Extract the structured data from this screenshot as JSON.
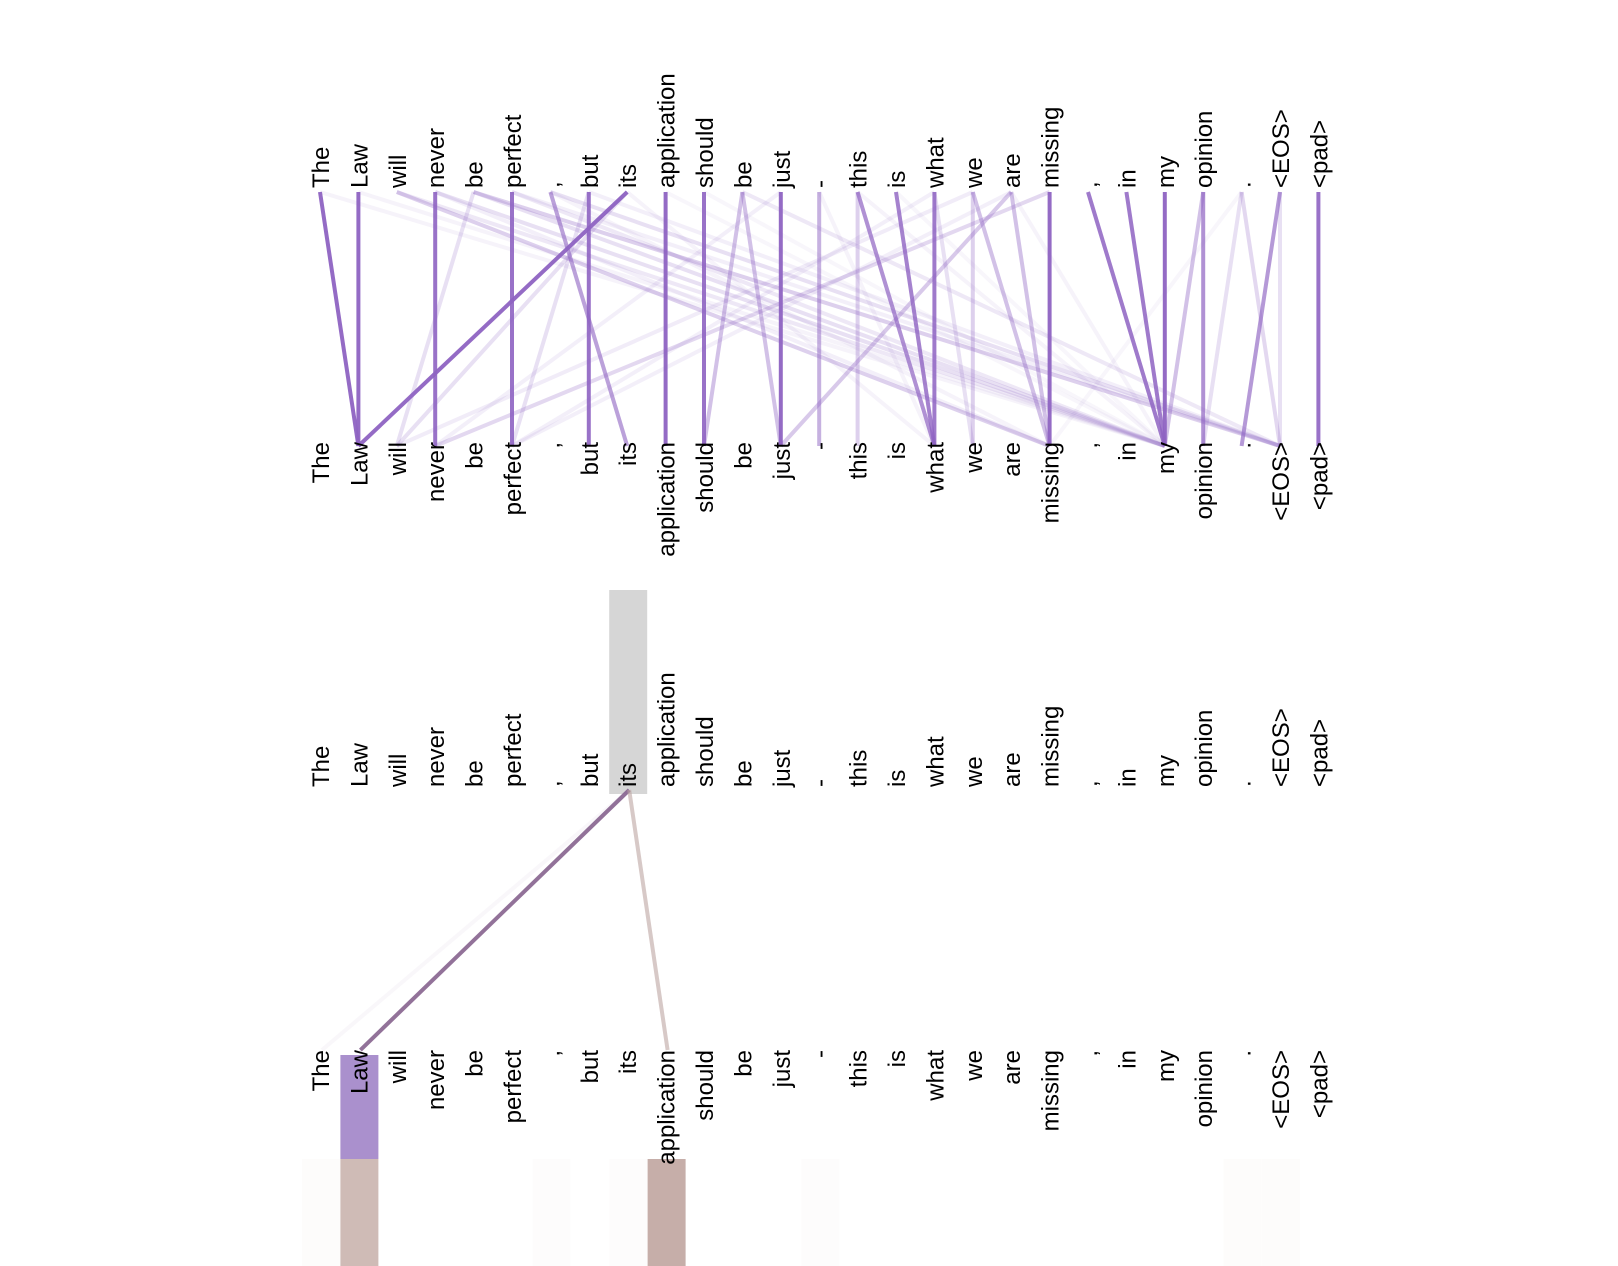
{
  "tokens": [
    "The",
    "Law",
    "will",
    "never",
    "be",
    "perfect",
    ",",
    "but",
    "its",
    "application",
    "should",
    "be",
    "just",
    "-",
    "this",
    "is",
    "what",
    "we",
    "are",
    "missing",
    ",",
    "in",
    "my",
    "opinion",
    ".",
    "<EOS>",
    "<pad>"
  ],
  "colors": {
    "attention_line": "#8e63c2",
    "detail_line_primary": "#8c6a94",
    "detail_line_secondary": "#bda5a2",
    "selected_token_bg": "#d6d6d6",
    "primary_highlight": "#9b7cc4",
    "secondary_highlight": "#c3aaa4",
    "background": "#ffffff"
  },
  "overview_attention": [
    {
      "from": 0,
      "to": 1,
      "weight": 0.95
    },
    {
      "from": 1,
      "to": 1,
      "weight": 0.95
    },
    {
      "from": 2,
      "to": 19,
      "weight": 0.3
    },
    {
      "from": 2,
      "to": 22,
      "weight": 0.15
    },
    {
      "from": 3,
      "to": 3,
      "weight": 0.9
    },
    {
      "from": 3,
      "to": 22,
      "weight": 0.2
    },
    {
      "from": 4,
      "to": 25,
      "weight": 0.3
    },
    {
      "from": 4,
      "to": 22,
      "weight": 0.2
    },
    {
      "from": 4,
      "to": 2,
      "weight": 0.2
    },
    {
      "from": 5,
      "to": 5,
      "weight": 0.9
    },
    {
      "from": 5,
      "to": 22,
      "weight": 0.15
    },
    {
      "from": 6,
      "to": 25,
      "weight": 0.2
    },
    {
      "from": 6,
      "to": 8,
      "weight": 0.6
    },
    {
      "from": 7,
      "to": 7,
      "weight": 0.9
    },
    {
      "from": 7,
      "to": 5,
      "weight": 0.2
    },
    {
      "from": 8,
      "to": 1,
      "weight": 0.95
    },
    {
      "from": 8,
      "to": 2,
      "weight": 0.2
    },
    {
      "from": 9,
      "to": 9,
      "weight": 0.95
    },
    {
      "from": 10,
      "to": 10,
      "weight": 0.9
    },
    {
      "from": 11,
      "to": 12,
      "weight": 0.4
    },
    {
      "from": 11,
      "to": 10,
      "weight": 0.4
    },
    {
      "from": 11,
      "to": 25,
      "weight": 0.15
    },
    {
      "from": 12,
      "to": 12,
      "weight": 0.95
    },
    {
      "from": 13,
      "to": 13,
      "weight": 0.5
    },
    {
      "from": 14,
      "to": 16,
      "weight": 0.7
    },
    {
      "from": 14,
      "to": 14,
      "weight": 0.3
    },
    {
      "from": 15,
      "to": 16,
      "weight": 0.8
    },
    {
      "from": 16,
      "to": 16,
      "weight": 0.85
    },
    {
      "from": 16,
      "to": 17,
      "weight": 0.2
    },
    {
      "from": 17,
      "to": 19,
      "weight": 0.4
    },
    {
      "from": 17,
      "to": 17,
      "weight": 0.3
    },
    {
      "from": 18,
      "to": 12,
      "weight": 0.35
    },
    {
      "from": 18,
      "to": 19,
      "weight": 0.4
    },
    {
      "from": 19,
      "to": 19,
      "weight": 0.95
    },
    {
      "from": 19,
      "to": 3,
      "weight": 0.25
    },
    {
      "from": 20,
      "to": 22,
      "weight": 0.85
    },
    {
      "from": 21,
      "to": 22,
      "weight": 0.85
    },
    {
      "from": 22,
      "to": 22,
      "weight": 0.95
    },
    {
      "from": 23,
      "to": 23,
      "weight": 0.7
    },
    {
      "from": 23,
      "to": 22,
      "weight": 0.4
    },
    {
      "from": 24,
      "to": 25,
      "weight": 0.25
    },
    {
      "from": 24,
      "to": 23,
      "weight": 0.2
    },
    {
      "from": 25,
      "to": 24,
      "weight": 0.65
    },
    {
      "from": 25,
      "to": 25,
      "weight": 0.2
    },
    {
      "from": 26,
      "to": 26,
      "weight": 0.9
    },
    {
      "from": 0,
      "to": 22,
      "weight": 0.08
    },
    {
      "from": 1,
      "to": 22,
      "weight": 0.08
    },
    {
      "from": 9,
      "to": 22,
      "weight": 0.06
    },
    {
      "from": 10,
      "to": 22,
      "weight": 0.06
    },
    {
      "from": 14,
      "to": 22,
      "weight": 0.08
    },
    {
      "from": 15,
      "to": 22,
      "weight": 0.06
    },
    {
      "from": 18,
      "to": 22,
      "weight": 0.08
    },
    {
      "from": 5,
      "to": 25,
      "weight": 0.1
    },
    {
      "from": 7,
      "to": 25,
      "weight": 0.1
    },
    {
      "from": 3,
      "to": 19,
      "weight": 0.1
    },
    {
      "from": 8,
      "to": 16,
      "weight": 0.08
    },
    {
      "from": 6,
      "to": 19,
      "weight": 0.08
    },
    {
      "from": 13,
      "to": 16,
      "weight": 0.08
    },
    {
      "from": 24,
      "to": 19,
      "weight": 0.06
    },
    {
      "from": 12,
      "to": 3,
      "weight": 0.1
    },
    {
      "from": 16,
      "to": 5,
      "weight": 0.1
    },
    {
      "from": 17,
      "to": 2,
      "weight": 0.12
    },
    {
      "from": 18,
      "to": 5,
      "weight": 0.1
    }
  ],
  "detail": {
    "selected_index": 8,
    "targets": [
      {
        "index": 1,
        "weight": 0.95,
        "kind": "primary"
      },
      {
        "index": 9,
        "weight": 0.6,
        "kind": "secondary"
      },
      {
        "index": 0,
        "weight": 0.03,
        "kind": "primary"
      }
    ],
    "bottom_highlights": [
      {
        "index": 1,
        "weight": 0.85,
        "kind": "primary"
      },
      {
        "index": 9,
        "weight": 0.0,
        "kind": "primary"
      }
    ],
    "bottom_secondary": [
      {
        "index": 0,
        "weight": 0.04
      },
      {
        "index": 1,
        "weight": 0.8
      },
      {
        "index": 6,
        "weight": 0.03
      },
      {
        "index": 8,
        "weight": 0.03
      },
      {
        "index": 9,
        "weight": 0.95
      },
      {
        "index": 13,
        "weight": 0.03
      },
      {
        "index": 24,
        "weight": 0.04
      },
      {
        "index": 25,
        "weight": 0.04
      }
    ]
  }
}
